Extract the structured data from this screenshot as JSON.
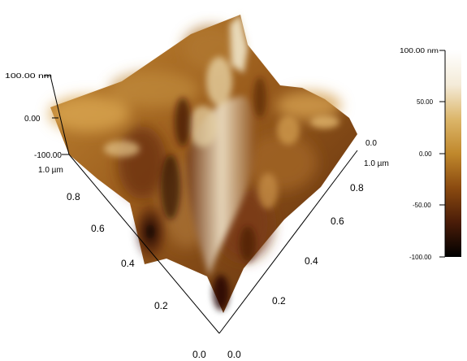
{
  "chart_data": {
    "type": "heatmap",
    "title": "",
    "xlabel": "",
    "ylabel": "",
    "z_axis": {
      "ticks": [
        "100.00 nm",
        "0.00",
        "-100.00"
      ],
      "zlim": [
        -100,
        100
      ],
      "unit": "nm"
    },
    "y_axis_left": {
      "ticks": [
        "1.0 µm",
        "0.8",
        "0.6",
        "0.4",
        "0.2",
        "0.0"
      ],
      "range": [
        0,
        1
      ],
      "unit": "µm"
    },
    "x_axis_right": {
      "ticks": [
        "0.0",
        "0.2",
        "0.4",
        "0.6",
        "0.8",
        "1.0 µm"
      ],
      "range": [
        0,
        1
      ],
      "unit": "µm"
    },
    "colorbar": {
      "ticks": [
        "100.00 nm",
        "50.00",
        "0.00",
        "-50.00",
        "-100.00"
      ],
      "range": [
        -100,
        100
      ],
      "colors": [
        "#000000",
        "#4a1c08",
        "#8a4a10",
        "#c0882c",
        "#dcb66a",
        "#f4ebd8",
        "#ffffff"
      ]
    },
    "grid": false,
    "legend": "right"
  }
}
